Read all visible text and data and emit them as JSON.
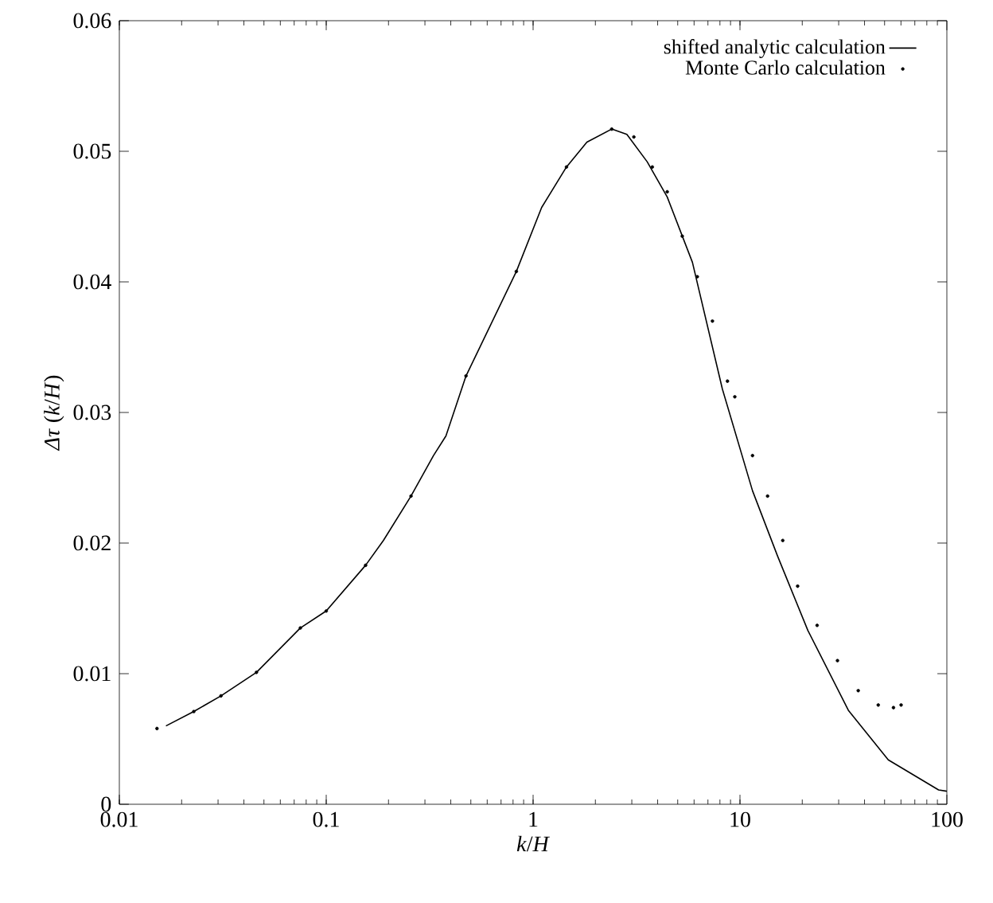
{
  "chart_data": {
    "type": "line",
    "xlabel": "*k*/*H*",
    "ylabel": "*Δτ* (*k*/*H*)",
    "log": "x",
    "xlim": [
      0.01,
      100
    ],
    "ylim": [
      0,
      0.06
    ],
    "xticks": [
      0.01,
      0.1,
      1,
      10,
      100
    ],
    "yticks": [
      0,
      0.01,
      0.02,
      0.03,
      0.04,
      0.05,
      0.06
    ],
    "legend": "top right",
    "grid": false,
    "series": [
      {
        "name": "shifted analytic calculation",
        "color": "#000000",
        "line_style": "solid",
        "marker": "none",
        "x": [
          0.0168,
          0.0229,
          0.031,
          0.046,
          0.075,
          0.1,
          0.155,
          0.189,
          0.257,
          0.33,
          0.379,
          0.474,
          0.83,
          1.1,
          1.45,
          1.82,
          2.4,
          2.84,
          3.56,
          4.45,
          5.89,
          8.22,
          11.5,
          15.2,
          21.3,
          33.4,
          52.1,
          91.2,
          100
        ],
        "values": [
          0.006,
          0.0071,
          0.0083,
          0.0101,
          0.0135,
          0.0148,
          0.0183,
          0.0202,
          0.0236,
          0.0267,
          0.0282,
          0.0328,
          0.0408,
          0.0457,
          0.0488,
          0.0507,
          0.0517,
          0.0513,
          0.0492,
          0.0465,
          0.0415,
          0.0318,
          0.024,
          0.019,
          0.0133,
          0.0072,
          0.0034,
          0.0011,
          0.001
        ]
      },
      {
        "name": "Monte Carlo calculation",
        "type": "scatter",
        "color": "#000000",
        "marker": "circle",
        "x": [
          0.0152,
          0.0229,
          0.031,
          0.046,
          0.075,
          0.1,
          0.155,
          0.257,
          0.474,
          0.83,
          1.45,
          2.4,
          3.07,
          3.77,
          4.45,
          5.26,
          6.22,
          7.36,
          8.7,
          9.44,
          11.5,
          13.6,
          16.1,
          19,
          23.6,
          29.6,
          37.3,
          46.6,
          55.2,
          60.1
        ],
        "values": [
          0.0058,
          0.0071,
          0.0083,
          0.0101,
          0.0135,
          0.0148,
          0.0183,
          0.0236,
          0.0328,
          0.0408,
          0.0488,
          0.0517,
          0.0511,
          0.0488,
          0.0469,
          0.0435,
          0.0404,
          0.037,
          0.0324,
          0.0312,
          0.0267,
          0.0236,
          0.0202,
          0.0167,
          0.0137,
          0.011,
          0.0087,
          0.0076,
          0.0074,
          0.0076
        ]
      }
    ]
  }
}
